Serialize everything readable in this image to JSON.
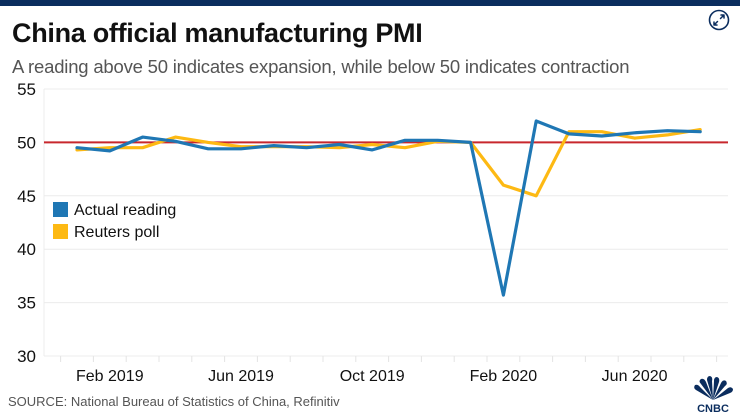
{
  "header": {
    "title": "China official manufacturing PMI",
    "subtitle": "A reading above 50 indicates expansion, while below 50 indicates contraction",
    "expand_icon": "expand-arrows-icon"
  },
  "footer": {
    "source": "SOURCE: National Bureau of Statistics of China, Refinitiv",
    "logo_text": "CNBC",
    "logo_icon": "peacock-icon"
  },
  "chart_data": {
    "type": "line",
    "title": "China official manufacturing PMI",
    "subtitle": "A reading above 50 indicates expansion, while below 50 indicates contraction",
    "xlabel": "",
    "ylabel": "",
    "x": [
      "Jan 2019",
      "Feb 2019",
      "Mar 2019",
      "Apr 2019",
      "May 2019",
      "Jun 2019",
      "Jul 2019",
      "Aug 2019",
      "Sep 2019",
      "Oct 2019",
      "Nov 2019",
      "Dec 2019",
      "Jan 2020",
      "Feb 2020",
      "Mar 2020",
      "Apr 2020",
      "May 2020",
      "Jun 2020",
      "Jul 2020",
      "Aug 2020"
    ],
    "x_tick_labels": [
      "Feb 2019",
      "Jun 2019",
      "Oct 2019",
      "Feb 2020",
      "Jun 2020"
    ],
    "x_tick_label_months": [
      "Feb 2019",
      "Jun 2019",
      "Oct 2019",
      "Feb 2020",
      "Jun 2020"
    ],
    "y_ticks": [
      30,
      35,
      40,
      45,
      50,
      55
    ],
    "ylim": [
      30,
      55
    ],
    "reference_line": {
      "value": 50,
      "color": "#c8272d"
    },
    "grid": true,
    "legend": {
      "position": "left-middle"
    },
    "series": [
      {
        "name": "Actual reading",
        "color": "#1f77b4",
        "values": [
          49.5,
          49.2,
          50.5,
          50.1,
          49.4,
          49.4,
          49.7,
          49.5,
          49.8,
          49.3,
          50.2,
          50.2,
          50.0,
          35.7,
          52.0,
          50.8,
          50.6,
          50.9,
          51.1,
          51.0
        ]
      },
      {
        "name": "Reuters poll",
        "color": "#fdb913",
        "values": [
          49.3,
          49.5,
          49.5,
          50.5,
          50.0,
          49.6,
          49.6,
          49.6,
          49.5,
          49.8,
          49.5,
          50.1,
          50.0,
          46.0,
          45.0,
          51.0,
          51.0,
          50.4,
          50.7,
          51.2
        ]
      }
    ]
  }
}
